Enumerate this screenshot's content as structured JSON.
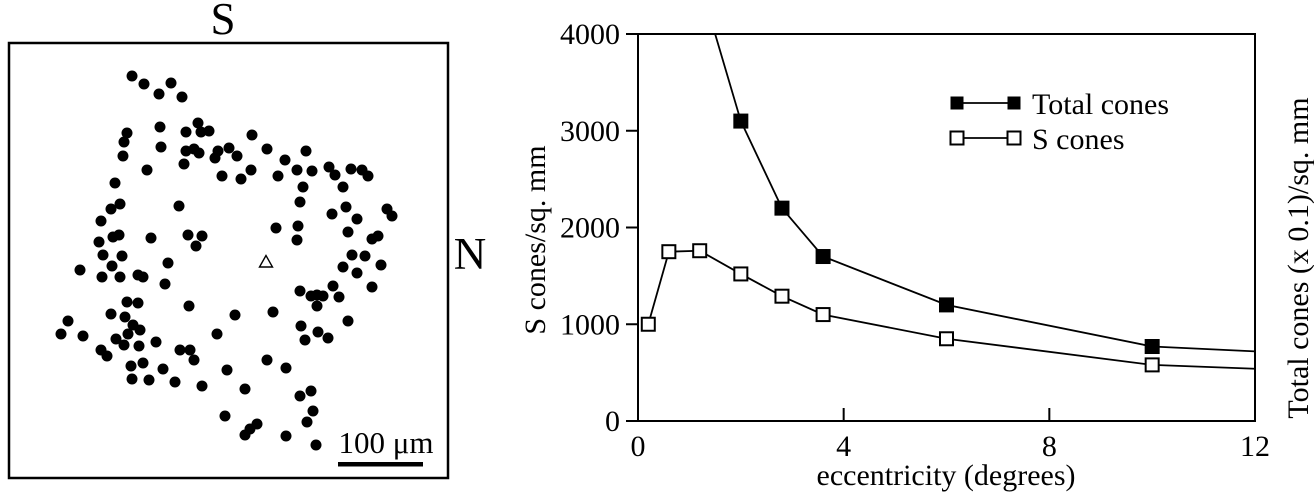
{
  "background_color": "#ffffff",
  "ink_color": "#000000",
  "chart_data": [
    {
      "type": "scatter",
      "direction_labels": {
        "top": "S",
        "right": "N"
      },
      "scale_bar": {
        "label": "100 μm"
      },
      "center_marker": "open-triangle",
      "dot_radius_px": 5.5,
      "points": [
        [
          132,
          76
        ],
        [
          144,
          84
        ],
        [
          159,
          94
        ],
        [
          171,
          83
        ],
        [
          182,
          97
        ],
        [
          160,
          127
        ],
        [
          127,
          133
        ],
        [
          124,
          142
        ],
        [
          186,
          132
        ],
        [
          198,
          123
        ],
        [
          201,
          132
        ],
        [
          209,
          131
        ],
        [
          161,
          147
        ],
        [
          123,
          156
        ],
        [
          186,
          151
        ],
        [
          194,
          149
        ],
        [
          199,
          153
        ],
        [
          184,
          164
        ],
        [
          218,
          151
        ],
        [
          229,
          148
        ],
        [
          215,
          158
        ],
        [
          147,
          170
        ],
        [
          222,
          176
        ],
        [
          115,
          183
        ],
        [
          120,
          204
        ],
        [
          111,
          209
        ],
        [
          179,
          206
        ],
        [
          101,
          221
        ],
        [
          113,
          237
        ],
        [
          119,
          235
        ],
        [
          99,
          242
        ],
        [
          151,
          238
        ],
        [
          188,
          235
        ],
        [
          202,
          236
        ],
        [
          103,
          255
        ],
        [
          122,
          256
        ],
        [
          168,
          263
        ],
        [
          196,
          246
        ],
        [
          252,
          135
        ],
        [
          237,
          156
        ],
        [
          267,
          149
        ],
        [
          285,
          160
        ],
        [
          251,
          170
        ],
        [
          241,
          179
        ],
        [
          278,
          176
        ],
        [
          297,
          170
        ],
        [
          306,
          151
        ],
        [
          312,
          171
        ],
        [
          303,
          187
        ],
        [
          329,
          167
        ],
        [
          335,
          175
        ],
        [
          351,
          169
        ],
        [
          362,
          170
        ],
        [
          368,
          176
        ],
        [
          343,
          187
        ],
        [
          332,
          214
        ],
        [
          346,
          207
        ],
        [
          357,
          219
        ],
        [
          387,
          209
        ],
        [
          392,
          216
        ],
        [
          348,
          232
        ],
        [
          372,
          239
        ],
        [
          378,
          236
        ],
        [
          276,
          228
        ],
        [
          298,
          226
        ],
        [
          297,
          240
        ],
        [
          300,
          202
        ],
        [
          352,
          255
        ],
        [
          365,
          256
        ],
        [
          381,
          265
        ],
        [
          80,
          270
        ],
        [
          102,
          277
        ],
        [
          112,
          266
        ],
        [
          120,
          277
        ],
        [
          138,
          275
        ],
        [
          143,
          277
        ],
        [
          165,
          284
        ],
        [
          189,
          306
        ],
        [
          127,
          302
        ],
        [
          138,
          303
        ],
        [
          111,
          314
        ],
        [
          125,
          317
        ],
        [
          68,
          321
        ],
        [
          61,
          334
        ],
        [
          83,
          336
        ],
        [
          133,
          325
        ],
        [
          140,
          330
        ],
        [
          128,
          334
        ],
        [
          116,
          339
        ],
        [
          124,
          345
        ],
        [
          139,
          346
        ],
        [
          156,
          342
        ],
        [
          101,
          350
        ],
        [
          107,
          356
        ],
        [
          180,
          350
        ],
        [
          190,
          350
        ],
        [
          194,
          360
        ],
        [
          217,
          334
        ],
        [
          131,
          366
        ],
        [
          143,
          363
        ],
        [
          132,
          379
        ],
        [
          149,
          380
        ],
        [
          163,
          369
        ],
        [
          175,
          382
        ],
        [
          202,
          386
        ],
        [
          225,
          416
        ],
        [
          343,
          267
        ],
        [
          357,
          273
        ],
        [
          333,
          286
        ],
        [
          372,
          287
        ],
        [
          300,
          291
        ],
        [
          311,
          296
        ],
        [
          317,
          295
        ],
        [
          323,
          296
        ],
        [
          339,
          297
        ],
        [
          317,
          306
        ],
        [
          235,
          315
        ],
        [
          273,
          312
        ],
        [
          348,
          321
        ],
        [
          301,
          326
        ],
        [
          318,
          332
        ],
        [
          305,
          340
        ],
        [
          328,
          338
        ],
        [
          267,
          360
        ],
        [
          286,
          368
        ],
        [
          227,
          370
        ],
        [
          245,
          389
        ],
        [
          300,
          396
        ],
        [
          311,
          391
        ],
        [
          313,
          411
        ],
        [
          307,
          422
        ],
        [
          257,
          424
        ],
        [
          250,
          429
        ],
        [
          245,
          435
        ],
        [
          286,
          436
        ],
        [
          316,
          445
        ]
      ]
    },
    {
      "type": "line",
      "xlabel": "eccentricity (degrees)",
      "ylabel_left": "S cones/sq. mm",
      "ylabel_right": "Total cones (x 0.1)/sq. mm",
      "xlim": [
        0,
        12
      ],
      "ylim": [
        0,
        4000
      ],
      "xticks": [
        0,
        4,
        8,
        12
      ],
      "yticks": [
        0,
        1000,
        2000,
        3000,
        4000
      ],
      "grid": false,
      "legend": {
        "position": "top-right",
        "entries": [
          {
            "label": "Total cones",
            "marker": "filled-square"
          },
          {
            "label": "S cones",
            "marker": "open-square"
          }
        ]
      },
      "series": [
        {
          "name": "Total cones",
          "marker": "filled-square",
          "line": [
            [
              1.5,
              4000
            ],
            [
              2,
              3100
            ],
            [
              2.8,
              2200
            ],
            [
              3.6,
              1700
            ],
            [
              6,
              1200
            ],
            [
              10,
              770
            ],
            [
              12,
              720
            ]
          ],
          "points": [
            [
              2,
              3100
            ],
            [
              2.8,
              2200
            ],
            [
              3.6,
              1700
            ],
            [
              6,
              1200
            ],
            [
              10,
              770
            ]
          ]
        },
        {
          "name": "S cones",
          "marker": "open-square",
          "line": [
            [
              0.2,
              1000
            ],
            [
              0.6,
              1750
            ],
            [
              1.2,
              1760
            ],
            [
              2,
              1520
            ],
            [
              2.8,
              1290
            ],
            [
              3.6,
              1100
            ],
            [
              6,
              850
            ],
            [
              10,
              580
            ],
            [
              12,
              540
            ]
          ],
          "points": [
            [
              0.2,
              1000
            ],
            [
              0.6,
              1750
            ],
            [
              1.2,
              1760
            ],
            [
              2,
              1520
            ],
            [
              2.8,
              1290
            ],
            [
              3.6,
              1100
            ],
            [
              6,
              850
            ],
            [
              10,
              580
            ]
          ]
        }
      ]
    }
  ]
}
